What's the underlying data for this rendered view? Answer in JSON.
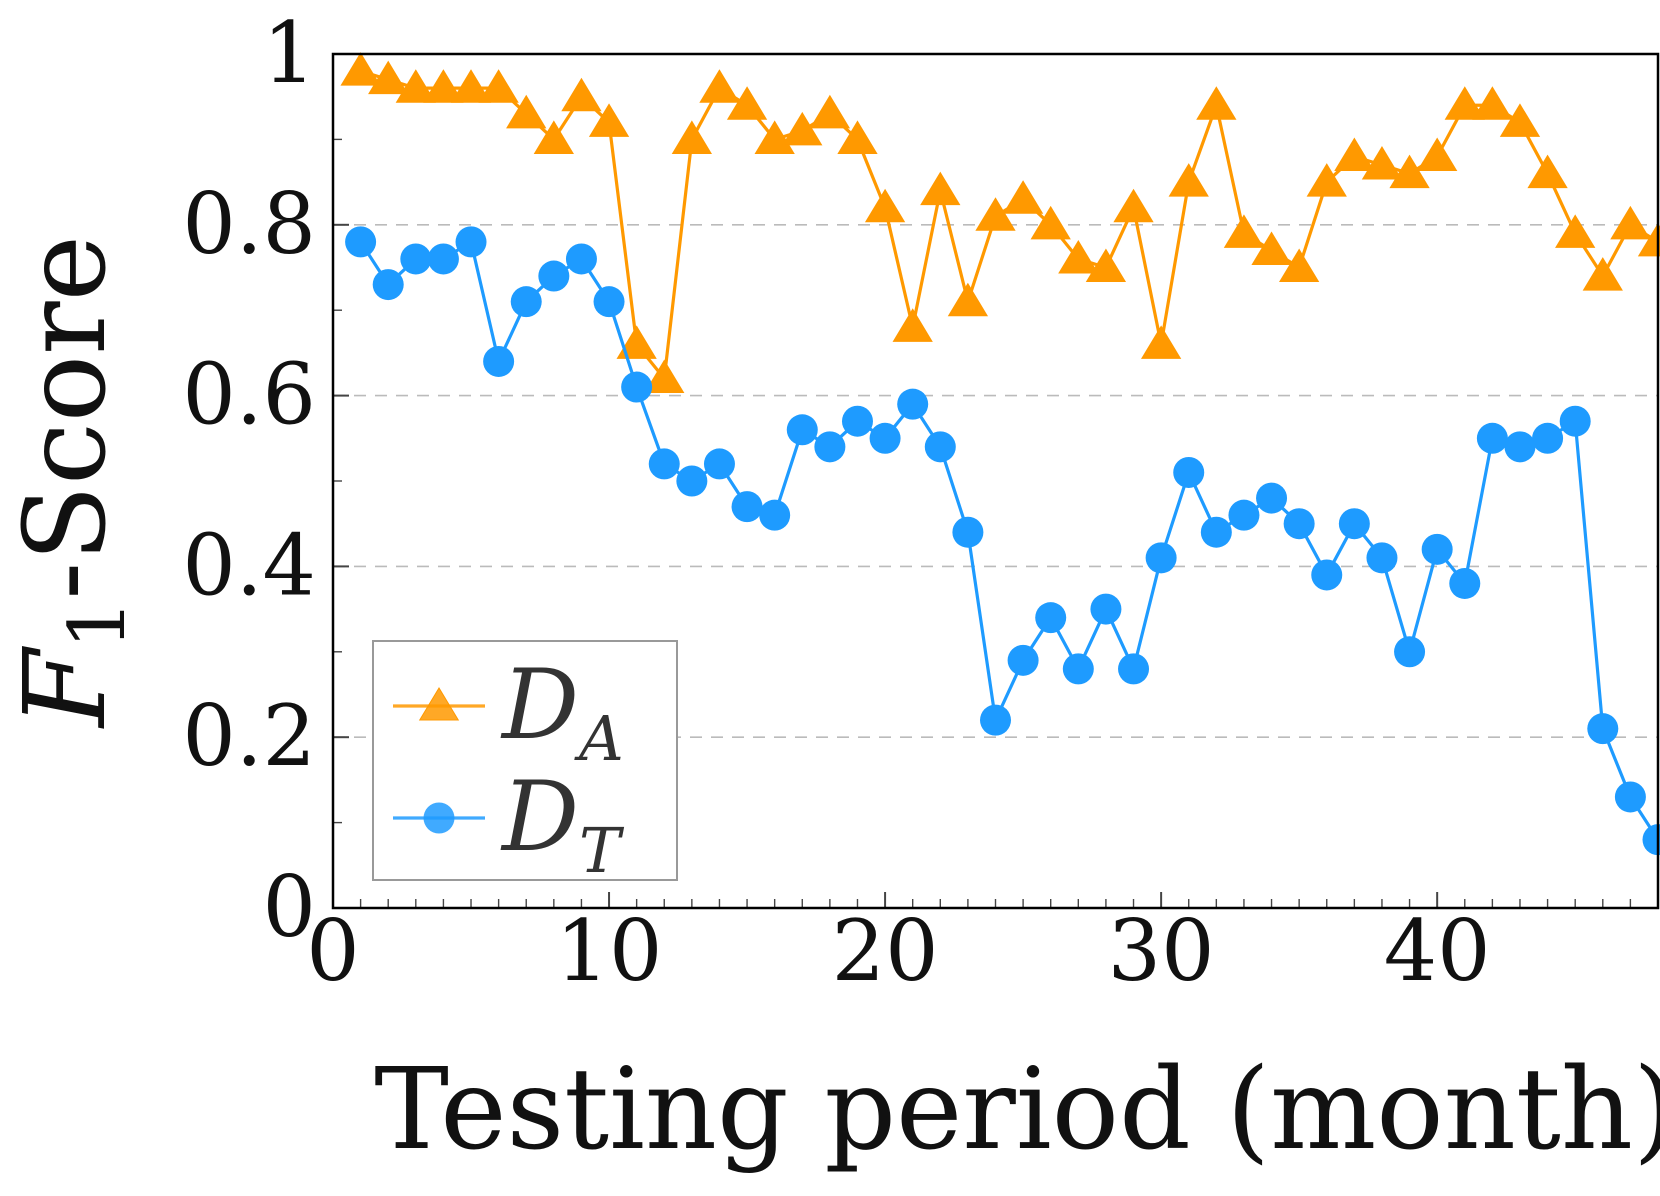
{
  "chart_data": {
    "type": "line",
    "xlabel": "Testing period (month)",
    "ylabel": "F1-Score",
    "ylabel_main": "F",
    "ylabel_sub": "1",
    "ylabel_rest": "-Score",
    "xlim": [
      0,
      48
    ],
    "ylim": [
      0,
      1
    ],
    "x_ticks": [
      0,
      10,
      20,
      30,
      40
    ],
    "x_tick_labels": [
      "0",
      "10",
      "20",
      "30",
      "40"
    ],
    "y_ticks": [
      0,
      0.2,
      0.4,
      0.6,
      0.8,
      1
    ],
    "y_tick_labels": [
      "0",
      "0.2",
      "0.4",
      "0.6",
      "0.8",
      "1"
    ],
    "grid": "horizontal-dashed",
    "legend_position": "bottom-left",
    "x": [
      1,
      2,
      3,
      4,
      5,
      6,
      7,
      8,
      9,
      10,
      11,
      12,
      13,
      14,
      15,
      16,
      17,
      18,
      19,
      20,
      21,
      22,
      23,
      24,
      25,
      26,
      27,
      28,
      29,
      30,
      31,
      32,
      33,
      34,
      35,
      36,
      37,
      38,
      39,
      40,
      41,
      42,
      43,
      44,
      45,
      46,
      47,
      48
    ],
    "series": [
      {
        "name": "D_A",
        "name_main": "D",
        "name_sub": "A",
        "color": "#FF9900",
        "marker": "triangle",
        "values": [
          0.98,
          0.97,
          0.96,
          0.96,
          0.96,
          0.96,
          0.93,
          0.9,
          0.95,
          0.92,
          0.66,
          0.62,
          0.9,
          0.96,
          0.94,
          0.9,
          0.91,
          0.93,
          0.9,
          0.82,
          0.68,
          0.84,
          0.71,
          0.81,
          0.83,
          0.8,
          0.76,
          0.75,
          0.82,
          0.66,
          0.85,
          0.94,
          0.79,
          0.77,
          0.75,
          0.85,
          0.88,
          0.87,
          0.86,
          0.88,
          0.94,
          0.94,
          0.92,
          0.86,
          0.79,
          0.74,
          0.8,
          0.78
        ]
      },
      {
        "name": "D_T",
        "name_main": "D",
        "name_sub": "T",
        "color": "#1E9BFF",
        "marker": "circle",
        "values": [
          0.78,
          0.73,
          0.76,
          0.76,
          0.78,
          0.64,
          0.71,
          0.74,
          0.76,
          0.71,
          0.61,
          0.52,
          0.5,
          0.52,
          0.47,
          0.46,
          0.56,
          0.54,
          0.57,
          0.55,
          0.59,
          0.54,
          0.44,
          0.22,
          0.29,
          0.34,
          0.28,
          0.35,
          0.28,
          0.41,
          0.51,
          0.44,
          0.46,
          0.48,
          0.45,
          0.39,
          0.45,
          0.41,
          0.3,
          0.42,
          0.38,
          0.55,
          0.54,
          0.55,
          0.57,
          0.21,
          0.13,
          0.08
        ]
      }
    ]
  }
}
